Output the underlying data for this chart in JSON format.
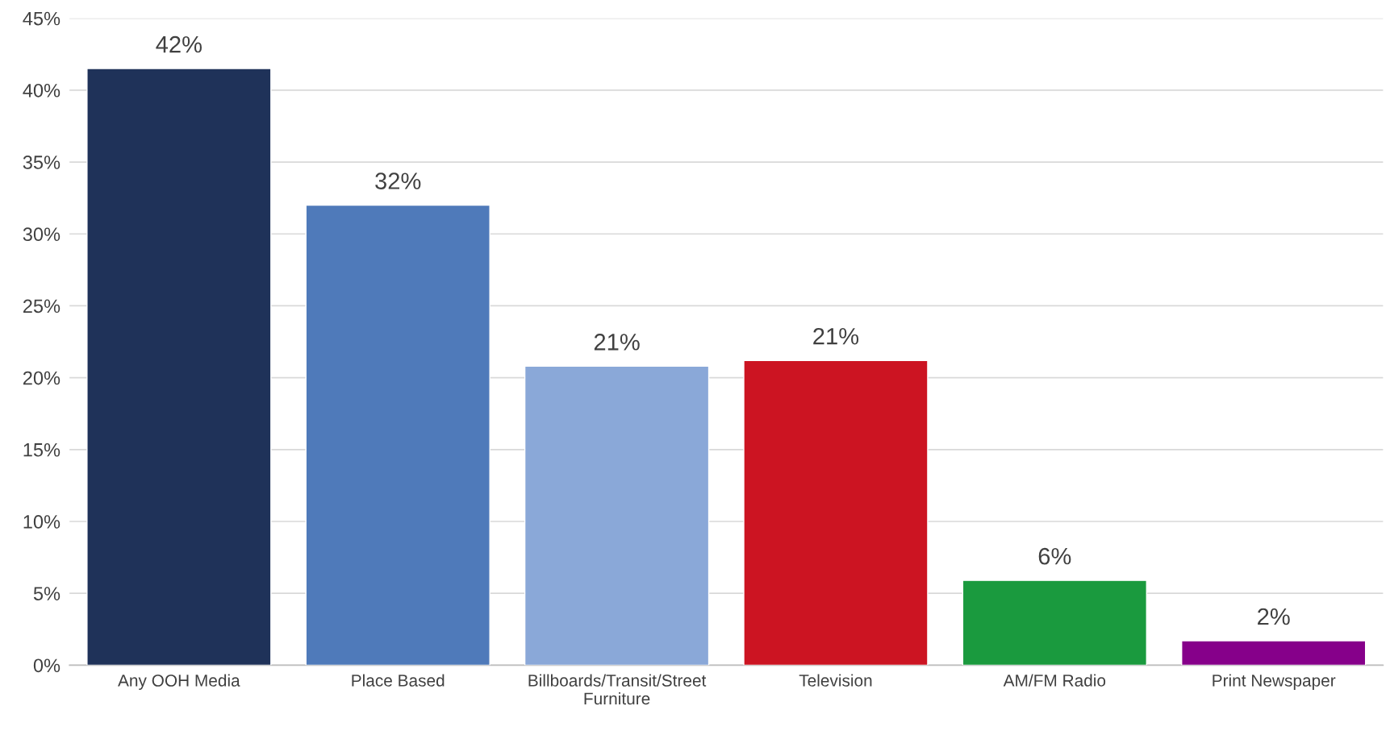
{
  "chart_data": {
    "type": "bar",
    "categories": [
      "Any OOH Media",
      "Place Based",
      "Billboards/Transit/Street Furniture",
      "Television",
      "AM/FM Radio",
      "Print Newspaper"
    ],
    "values": [
      41.5,
      32.0,
      20.8,
      21.2,
      5.9,
      1.7
    ],
    "value_labels": [
      "42%",
      "32%",
      "21%",
      "21%",
      "6%",
      "2%"
    ],
    "colors": [
      "#1f3259",
      "#4f7aba",
      "#8aa8d8",
      "#cc1422",
      "#1a9a3e",
      "#86008a"
    ],
    "ylim": [
      0,
      45
    ],
    "yticks": [
      {
        "value": 0,
        "label": "0%"
      },
      {
        "value": 5,
        "label": "5%"
      },
      {
        "value": 10,
        "label": "10%"
      },
      {
        "value": 15,
        "label": "15%"
      },
      {
        "value": 20,
        "label": "20%"
      },
      {
        "value": 25,
        "label": "25%"
      },
      {
        "value": 30,
        "label": "30%"
      },
      {
        "value": 35,
        "label": "35%"
      },
      {
        "value": 40,
        "label": "40%"
      },
      {
        "value": 45,
        "label": "45%"
      }
    ],
    "grid": "y"
  }
}
